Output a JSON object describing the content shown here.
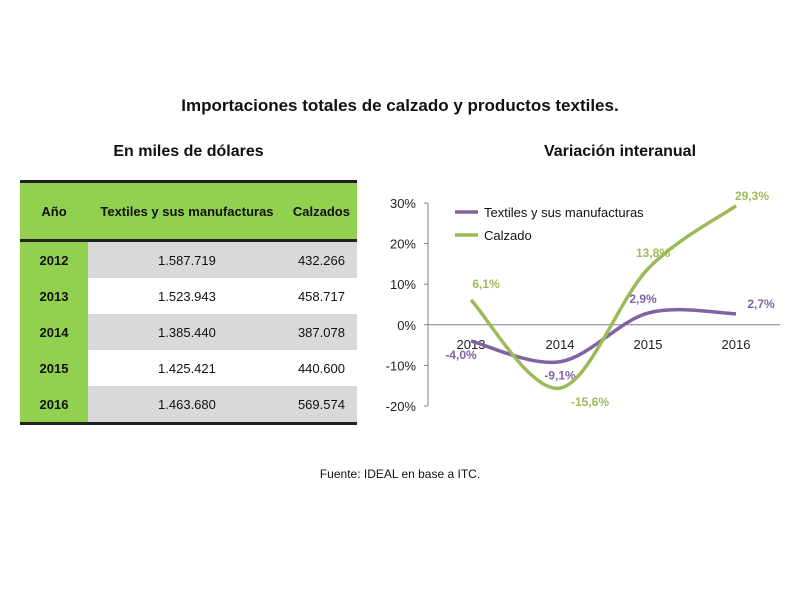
{
  "title": "Importaciones totales de calzado y productos textiles.",
  "table": {
    "title": "En miles de dólares",
    "headers": [
      "Año",
      "Textiles y sus manufacturas",
      "Calzados"
    ],
    "rows": [
      {
        "year": "2012",
        "textiles": "1.587.719",
        "calzados": "432.266"
      },
      {
        "year": "2013",
        "textiles": "1.523.943",
        "calzados": "458.717"
      },
      {
        "year": "2014",
        "textiles": "1.385.440",
        "calzados": "387.078"
      },
      {
        "year": "2015",
        "textiles": "1.425.421",
        "calzados": "440.600"
      },
      {
        "year": "2016",
        "textiles": "1.463.680",
        "calzados": "569.574"
      }
    ]
  },
  "chart_data": {
    "type": "line",
    "title": "Variación interanual",
    "x": [
      "2013",
      "2014",
      "2015",
      "2016"
    ],
    "series": [
      {
        "name": "Textiles y sus manufacturas",
        "color": "#8064a2",
        "values": [
          -4.0,
          -9.1,
          2.9,
          2.7
        ],
        "labels": [
          "-4,0%",
          "-9,1%",
          "2,9%",
          "2,7%"
        ]
      },
      {
        "name": "Calzado",
        "color": "#9bbb59",
        "values": [
          6.1,
          -15.6,
          13.8,
          29.3
        ],
        "labels": [
          "6,1%",
          "-15,6%",
          "13,8%",
          "29,3%"
        ]
      }
    ],
    "ylim": [
      -20,
      30
    ],
    "yticks": [
      30,
      20,
      10,
      0,
      -10,
      -20
    ],
    "ytick_labels": [
      "30%",
      "20%",
      "10%",
      "0%",
      "-10%",
      "-20%"
    ],
    "legend": "top-left",
    "grid": false
  },
  "source": "Fuente: IDEAL en base a ITC."
}
